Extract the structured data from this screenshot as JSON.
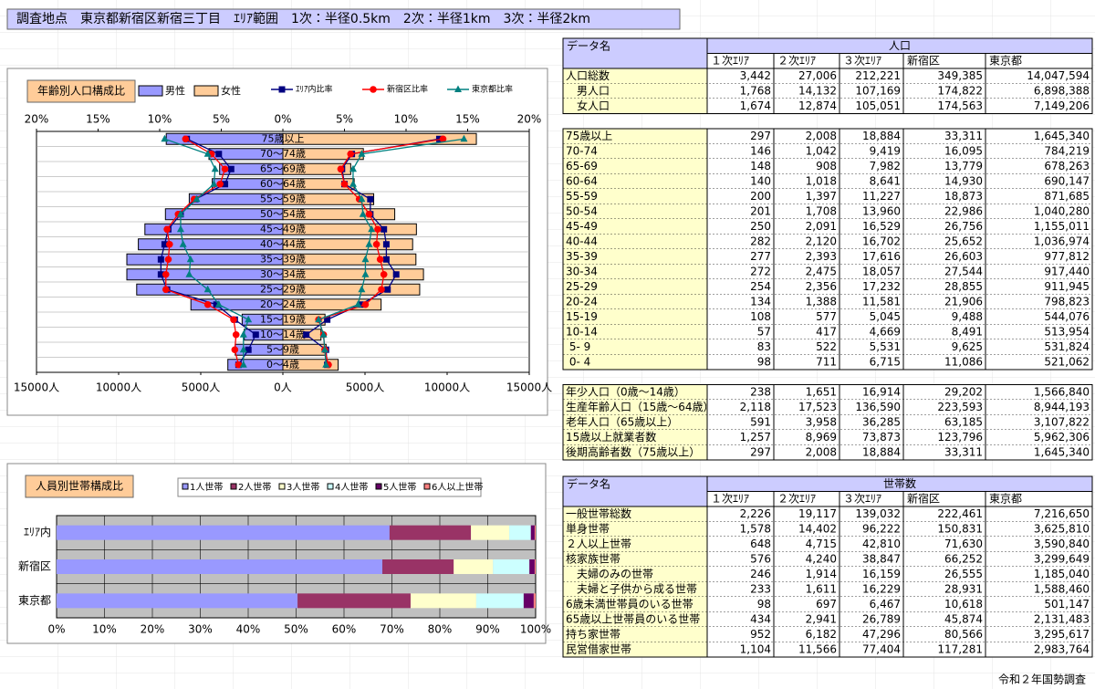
{
  "header": "調査地点　東京都新宿区新宿三丁目　ｴﾘｱ範囲　1次：半径0.5km　2次：半径1km　3次：半径2km",
  "footer": "令和２年国勢調査",
  "chart_data": [
    {
      "type": "pyramid",
      "title": "年齢別人口構成比",
      "categories": [
        "75歳以上",
        "70～74歳",
        "65～69歳",
        "60～64歳",
        "55～59歳",
        "50～54歳",
        "45～49歳",
        "40～44歳",
        "35～39歳",
        "30～34歳",
        "25～29歳",
        "20～24歳",
        "15～19歳",
        "10～14歳",
        "5～9歳",
        "0～4歳"
      ],
      "series": [
        {
          "name": "男性",
          "color": "#9999ff",
          "side": "left",
          "values": [
            7100,
            4500,
            3850,
            4300,
            5700,
            7150,
            8400,
            8800,
            9500,
            9500,
            8900,
            5600,
            2480,
            2350,
            2900,
            3350
          ]
        },
        {
          "name": "女性",
          "color": "#ffcc99",
          "side": "right",
          "values": [
            11780,
            4900,
            4130,
            4340,
            5530,
            6810,
            8130,
            7900,
            8100,
            8560,
            8330,
            5980,
            2565,
            2320,
            2630,
            3365
          ]
        }
      ],
      "ratio_series": [
        {
          "name": "ｴﾘｱ内比率",
          "color": "#000080",
          "marker": "square",
          "left_values": [
            7.8,
            5.2,
            4.2,
            4.7,
            7.1,
            8.3,
            9.3,
            9.6,
            9.9,
            9.9,
            9.4,
            5.4,
            3.9,
            2.2,
            2.8,
            3.6
          ],
          "right_values": [
            12.7,
            5.6,
            4.8,
            5.0,
            7.1,
            7.1,
            8.2,
            8.4,
            8.4,
            9.2,
            8.5,
            6.3,
            3.6,
            1.9,
            3.5,
            3.6
          ]
        },
        {
          "name": "新宿区比率",
          "color": "#ff0000",
          "marker": "circle",
          "left_values": [
            7.9,
            5.8,
            4.7,
            5.1,
            7.2,
            8.5,
            9.4,
            9.2,
            9.3,
            9.5,
            9.5,
            6.1,
            4.0,
            3.8,
            3.9,
            3.6
          ],
          "right_values": [
            13.0,
            5.5,
            4.7,
            5.0,
            6.2,
            7.0,
            7.7,
            7.6,
            7.9,
            8.2,
            8.0,
            6.7,
            2.9,
            3.3,
            3.4,
            3.7
          ]
        },
        {
          "name": "東京都比率",
          "color": "#008080",
          "marker": "triangle",
          "left_values": [
            9.6,
            6.1,
            5.5,
            5.6,
            7.0,
            8.3,
            8.3,
            8.1,
            7.5,
            7.6,
            6.1,
            5.2,
            2.8,
            3.2,
            3.2,
            3.2
          ],
          "right_values": [
            14.7,
            6.4,
            5.7,
            5.7,
            6.4,
            6.5,
            7.2,
            7.0,
            6.7,
            6.7,
            6.4,
            6.1,
            2.9,
            3.3,
            3.4,
            3.5
          ]
        }
      ],
      "xlim": [
        -15000,
        15000
      ],
      "xticks": [
        {
          "value": -15000,
          "label": "15000人"
        },
        {
          "value": -10000,
          "label": "10000人"
        },
        {
          "value": -5000,
          "label": "5000人"
        },
        {
          "value": 0,
          "label": "0人"
        },
        {
          "value": 5000,
          "label": "5000人"
        },
        {
          "value": 10000,
          "label": "10000人"
        },
        {
          "value": 15000,
          "label": "15000人"
        }
      ],
      "x2lim": [
        -20,
        20
      ],
      "x2ticks": [
        {
          "value": -20,
          "label": "20%"
        },
        {
          "value": -15,
          "label": "15%"
        },
        {
          "value": -10,
          "label": "10%"
        },
        {
          "value": -5,
          "label": "5%"
        },
        {
          "value": 0,
          "label": "0%"
        },
        {
          "value": 5,
          "label": "5%"
        },
        {
          "value": 10,
          "label": "10%"
        },
        {
          "value": 15,
          "label": "15%"
        },
        {
          "value": 20,
          "label": "20%"
        }
      ]
    },
    {
      "type": "stacked_bar_h",
      "title": "人員別世帯構成比",
      "categories": [
        "ｴﾘｱ内",
        "新宿区",
        "東京都"
      ],
      "series": [
        {
          "name": "1人世帯",
          "color": "#9999ff",
          "values": [
            69.5,
            68.0,
            50.3
          ]
        },
        {
          "name": "2人世帯",
          "color": "#993366",
          "values": [
            17.0,
            14.9,
            23.6
          ]
        },
        {
          "name": "3人世帯",
          "color": "#ffffcc",
          "values": [
            8.0,
            8.2,
            13.7
          ]
        },
        {
          "name": "4人世帯",
          "color": "#ccffff",
          "values": [
            4.5,
            7.6,
            9.9
          ]
        },
        {
          "name": "5人世帯",
          "color": "#660066",
          "values": [
            0.8,
            1.1,
            2.1
          ]
        },
        {
          "name": "6人以上世帯",
          "color": "#ff8080",
          "values": [
            0.2,
            0.2,
            0.4
          ]
        }
      ],
      "xlim": [
        0,
        100
      ],
      "xticks": [
        {
          "value": 0,
          "label": "0%"
        },
        {
          "value": 10,
          "label": "10%"
        },
        {
          "value": 20,
          "label": "20%"
        },
        {
          "value": 30,
          "label": "30%"
        },
        {
          "value": 40,
          "label": "40%"
        },
        {
          "value": 50,
          "label": "50%"
        },
        {
          "value": 60,
          "label": "60%"
        },
        {
          "value": 70,
          "label": "70%"
        },
        {
          "value": 80,
          "label": "80%"
        },
        {
          "value": 90,
          "label": "90%"
        },
        {
          "value": 100,
          "label": "100%"
        }
      ]
    }
  ],
  "population_table": {
    "caption": "データ名",
    "group_header": "人口",
    "columns": [
      "１次ｴﾘｱ",
      "２次ｴﾘｱ",
      "３次ｴﾘｱ",
      "新宿区",
      "東京都"
    ],
    "sections": [
      [
        [
          "人口総数",
          "3,442",
          "27,006",
          "212,221",
          "349,385",
          "14,047,594"
        ],
        [
          "　男人口",
          "1,768",
          "14,132",
          "107,169",
          "174,822",
          "6,898,388"
        ],
        [
          "　女人口",
          "1,674",
          "12,874",
          "105,051",
          "174,563",
          "7,149,206"
        ]
      ],
      [
        [
          "75歳以上",
          "297",
          "2,008",
          "18,884",
          "33,311",
          "1,645,340"
        ],
        [
          "70-74",
          "146",
          "1,042",
          "9,419",
          "16,095",
          "784,219"
        ],
        [
          "65-69",
          "148",
          "908",
          "7,982",
          "13,779",
          "678,263"
        ],
        [
          "60-64",
          "140",
          "1,018",
          "8,641",
          "14,930",
          "690,147"
        ],
        [
          "55-59",
          "200",
          "1,397",
          "11,227",
          "18,873",
          "871,685"
        ],
        [
          "50-54",
          "201",
          "1,708",
          "13,960",
          "22,986",
          "1,040,280"
        ],
        [
          "45-49",
          "250",
          "2,091",
          "16,529",
          "26,756",
          "1,155,011"
        ],
        [
          "40-44",
          "282",
          "2,120",
          "16,702",
          "25,652",
          "1,036,974"
        ],
        [
          "35-39",
          "277",
          "2,393",
          "17,616",
          "26,603",
          "977,812"
        ],
        [
          "30-34",
          "272",
          "2,475",
          "18,057",
          "27,544",
          "917,440"
        ],
        [
          "25-29",
          "254",
          "2,356",
          "17,232",
          "28,855",
          "911,945"
        ],
        [
          "20-24",
          "134",
          "1,388",
          "11,581",
          "21,906",
          "798,823"
        ],
        [
          "15-19",
          "108",
          "577",
          "5,045",
          "9,488",
          "544,076"
        ],
        [
          "10-14",
          "57",
          "417",
          "4,669",
          "8,491",
          "513,954"
        ],
        [
          " 5- 9",
          "83",
          "522",
          "5,531",
          "9,625",
          "531,824"
        ],
        [
          " 0- 4",
          "98",
          "711",
          "6,715",
          "11,086",
          "521,062"
        ]
      ],
      [
        [
          "年少人口（0歳～14歳）",
          "238",
          "1,651",
          "16,914",
          "29,202",
          "1,566,840"
        ],
        [
          "生産年齢人口（15歳～64歳）",
          "2,118",
          "17,523",
          "136,590",
          "223,593",
          "8,944,193"
        ],
        [
          "老年人口（65歳以上）",
          "591",
          "3,958",
          "36,285",
          "63,185",
          "3,107,822"
        ],
        [
          "15歳以上就業者数",
          "1,257",
          "8,969",
          "73,873",
          "123,796",
          "5,962,306"
        ],
        [
          "後期高齢者数（75歳以上）",
          "297",
          "2,008",
          "18,884",
          "33,311",
          "1,645,340"
        ]
      ]
    ]
  },
  "household_table": {
    "caption": "データ名",
    "group_header": "世帯数",
    "columns": [
      "１次ｴﾘｱ",
      "２次ｴﾘｱ",
      "３次ｴﾘｱ",
      "新宿区",
      "東京都"
    ],
    "sections": [
      [
        [
          "一般世帯総数",
          "2,226",
          "19,117",
          "139,032",
          "222,461",
          "7,216,650"
        ],
        [
          "単身世帯",
          "1,578",
          "14,402",
          "96,222",
          "150,831",
          "3,625,810"
        ],
        [
          "２人以上世帯",
          "648",
          "4,715",
          "42,810",
          "71,630",
          "3,590,840"
        ],
        [
          "核家族世帯",
          "576",
          "4,240",
          "38,847",
          "66,252",
          "3,299,649"
        ],
        [
          "　夫婦のみの世帯",
          "246",
          "1,914",
          "16,159",
          "26,555",
          "1,185,040"
        ],
        [
          "　夫婦と子供から成る世帯",
          "233",
          "1,611",
          "16,229",
          "28,931",
          "1,588,460"
        ],
        [
          "6歳未満世帯員のいる世帯",
          "98",
          "697",
          "6,467",
          "10,618",
          "501,147"
        ],
        [
          "65歳以上世帯員のいる世帯",
          "434",
          "2,941",
          "26,789",
          "45,874",
          "2,131,483"
        ],
        [
          "持ち家世帯",
          "952",
          "6,182",
          "47,296",
          "80,566",
          "3,295,617"
        ],
        [
          "民営借家世帯",
          "1,104",
          "11,566",
          "77,404",
          "117,281",
          "2,983,764"
        ]
      ]
    ]
  }
}
